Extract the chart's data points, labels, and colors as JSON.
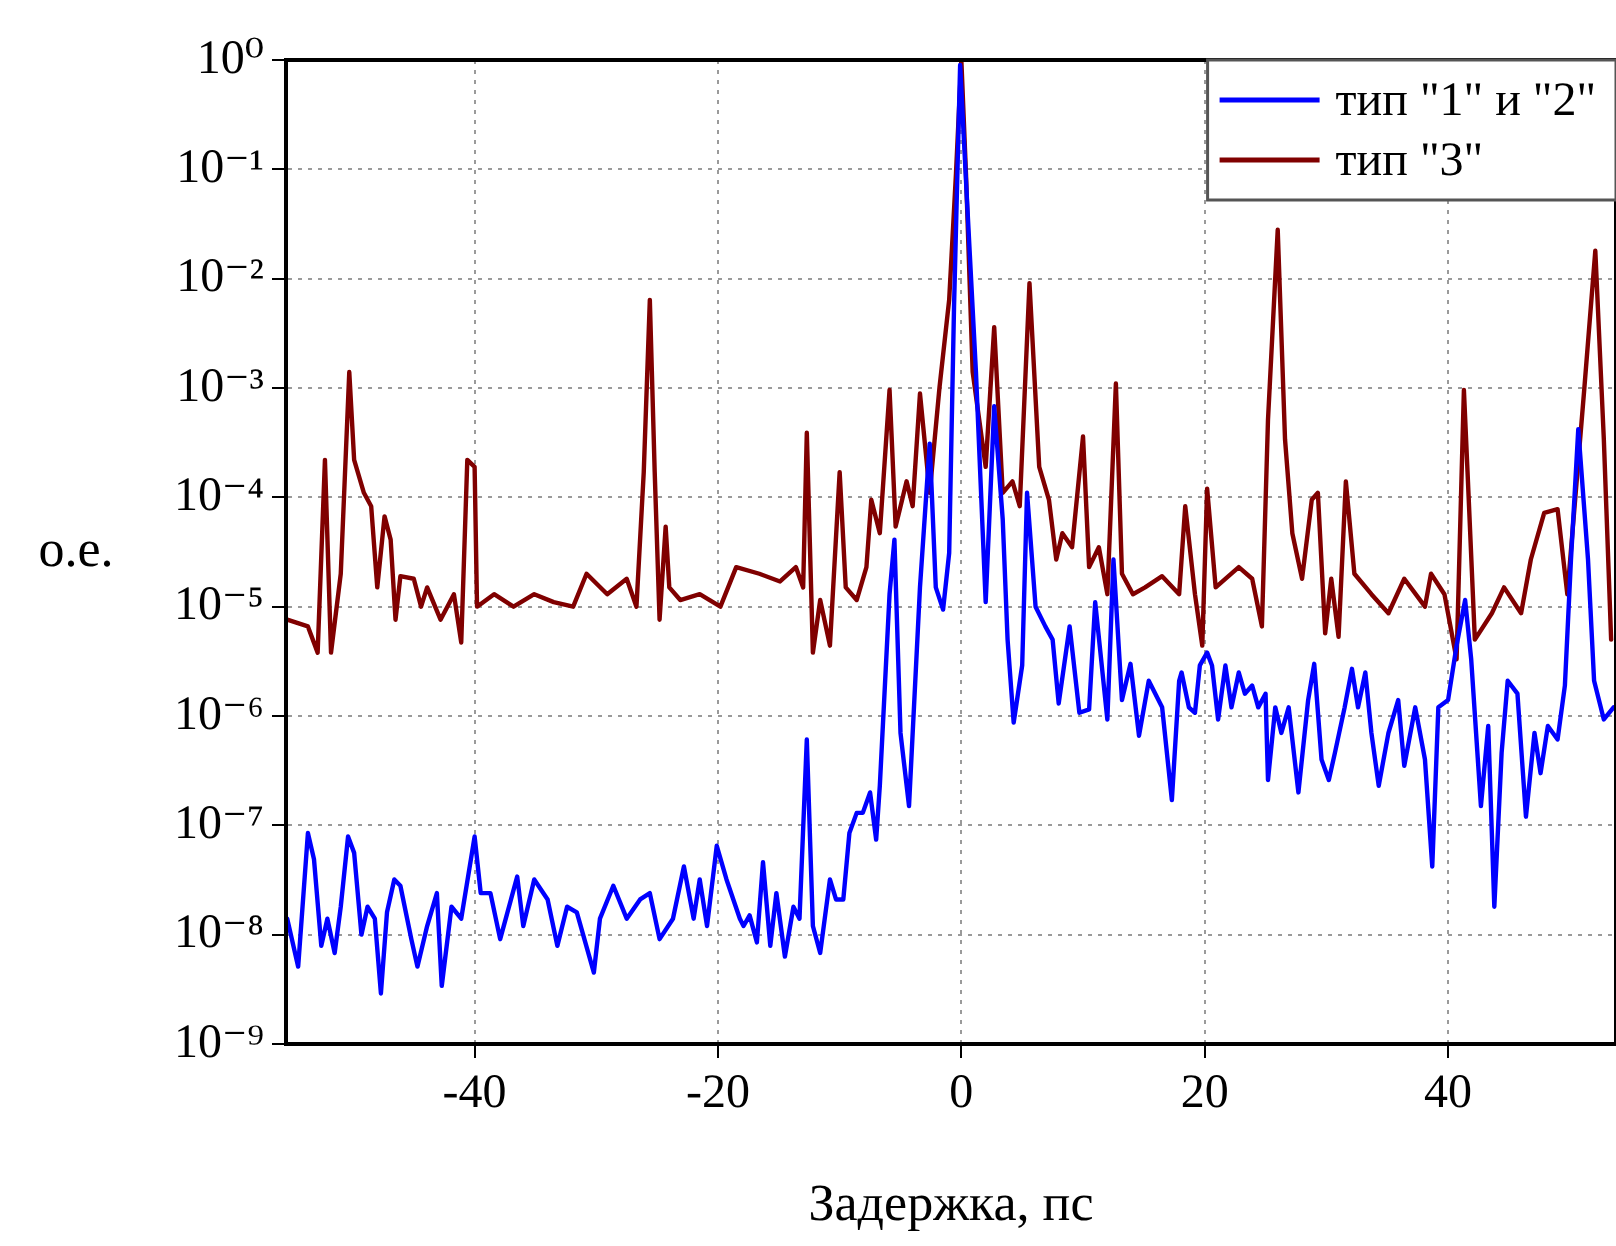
{
  "chart_data": {
    "type": "line",
    "xlabel": "Задержка, пс",
    "ylabel": "о.е.",
    "log": true,
    "grid": true,
    "legend": "top right",
    "marker": "none",
    "line_style": "solid",
    "xlim": [
      -55.5,
      53.8
    ],
    "xticks": [
      -40,
      -20,
      0,
      20,
      40
    ],
    "ylim": [
      1e-09,
      1
    ],
    "yticks": [
      {
        "value": 1e-09,
        "label": "10⁻⁹"
      },
      {
        "value": 1e-08,
        "label": "10⁻⁸"
      },
      {
        "value": 1e-07,
        "label": "10⁻⁷"
      },
      {
        "value": 1e-06,
        "label": "10⁻⁶"
      },
      {
        "value": 1e-05,
        "label": "10⁻⁵"
      },
      {
        "value": 0.0001,
        "label": "10⁻⁴"
      },
      {
        "value": 0.001,
        "label": "10⁻³"
      },
      {
        "value": 0.01,
        "label": "10⁻²"
      },
      {
        "value": 0.1,
        "label": "10⁻¹"
      },
      {
        "value": 1,
        "label": "10⁰"
      }
    ],
    "series": [
      {
        "name": "тип \"1\" и \"2\"",
        "color": "#0000ff",
        "x": [
          -55.4,
          -54.5,
          -53.7,
          -53.2,
          -52.6,
          -52.1,
          -51.5,
          -51.0,
          -50.4,
          -49.9,
          -49.3,
          -48.8,
          -48.2,
          -47.7,
          -47.2,
          -46.6,
          -46.1,
          -45.2,
          -44.7,
          -43.9,
          -43.1,
          -42.7,
          -41.9,
          -41.1,
          -40.0,
          -39.5,
          -38.7,
          -37.9,
          -36.5,
          -36.0,
          -35.1,
          -34.0,
          -33.2,
          -32.4,
          -31.6,
          -30.2,
          -29.7,
          -28.6,
          -27.5,
          -26.4,
          -25.6,
          -24.8,
          -23.7,
          -22.8,
          -22.0,
          -21.5,
          -20.9,
          -20.1,
          -19.3,
          -18.2,
          -17.9,
          -17.4,
          -16.8,
          -16.3,
          -15.7,
          -15.2,
          -14.5,
          -13.8,
          -13.3,
          -12.7,
          -12.2,
          -11.6,
          -10.8,
          -10.3,
          -9.7,
          -9.2,
          -8.6,
          -8.1,
          -7.5,
          -7.0,
          -6.7,
          -5.9,
          -5.5,
          -5.0,
          -4.3,
          -3.4,
          -2.6,
          -2.1,
          -1.5,
          -1.0,
          -0.6,
          -0.1,
          0.49,
          1.2,
          2.0,
          2.7,
          3.4,
          3.8,
          4.3,
          5.0,
          5.4,
          6.1,
          6.9,
          7.5,
          8.0,
          8.9,
          9.7,
          10.5,
          11.0,
          12.0,
          12.5,
          13.2,
          13.9,
          14.6,
          15.4,
          16.5,
          17.3,
          17.9,
          18.1,
          18.7,
          19.2,
          19.6,
          20.2,
          20.6,
          21.1,
          21.7,
          22.2,
          22.8,
          23.3,
          23.9,
          24.4,
          25.0,
          25.2,
          25.8,
          26.3,
          26.9,
          27.7,
          28.5,
          29.0,
          29.6,
          30.2,
          30.7,
          31.5,
          32.1,
          32.6,
          33.2,
          33.7,
          34.3,
          35.1,
          35.9,
          36.4,
          37.3,
          38.1,
          38.7,
          39.2,
          40.0,
          40.7,
          41.4,
          41.9,
          42.7,
          43.3,
          43.8,
          44.4,
          44.9,
          45.7,
          46.4,
          47.1,
          47.6,
          48.2,
          49.0,
          49.6,
          50.1,
          50.7,
          51.5,
          52.0,
          52.8,
          53.6
        ],
        "values": [
          1.4e-08,
          5.1e-09,
          8.5e-08,
          4.9e-08,
          7.9e-09,
          1.4e-08,
          6.8e-09,
          1.8e-08,
          7.9e-08,
          5.6e-08,
          1e-08,
          1.8e-08,
          1.4e-08,
          2.9e-09,
          1.6e-08,
          3.2e-08,
          2.8e-08,
          9.1e-09,
          5.1e-09,
          1.2e-08,
          2.4e-08,
          3.4e-09,
          1.8e-08,
          1.4e-08,
          7.9e-08,
          2.4e-08,
          2.4e-08,
          9.1e-09,
          3.4e-08,
          1.2e-08,
          3.2e-08,
          2.1e-08,
          7.9e-09,
          1.8e-08,
          1.6e-08,
          4.5e-09,
          1.4e-08,
          2.8e-08,
          1.4e-08,
          2.1e-08,
          2.4e-08,
          9.1e-09,
          1.4e-08,
          4.2e-08,
          1.4e-08,
          3.2e-08,
          1.2e-08,
          6.5e-08,
          3.2e-08,
          1.4e-08,
          1.2e-08,
          1.5e-08,
          8.5e-09,
          4.6e-08,
          7.9e-09,
          2.4e-08,
          6.3e-09,
          1.8e-08,
          1.4e-08,
          6.1e-07,
          1.2e-08,
          6.8e-09,
          3.2e-08,
          2.1e-08,
          2.1e-08,
          8.5e-08,
          1.3e-07,
          1.3e-07,
          2e-07,
          7.4e-08,
          2.3e-07,
          1.3e-05,
          4.1e-05,
          7e-07,
          1.5e-07,
          1.5e-05,
          0.00031,
          1.5e-05,
          9.4e-06,
          3.1e-05,
          0.0056,
          0.9,
          0.046,
          0.0014,
          1.1e-05,
          0.00068,
          6.3e-05,
          5e-06,
          8.7e-07,
          2.9e-06,
          0.00011,
          1e-05,
          6.6e-06,
          5e-06,
          1.3e-06,
          6.6e-06,
          1.07e-06,
          1.15e-06,
          1.1e-05,
          9.3e-07,
          2.7e-05,
          1.4e-06,
          3e-06,
          6.6e-07,
          2.1e-06,
          1.2e-06,
          1.7e-07,
          2.1e-06,
          2.5e-06,
          1.2e-06,
          1.07e-06,
          2.9e-06,
          3.8e-06,
          2.9e-06,
          9.3e-07,
          2.9e-06,
          1.2e-06,
          2.5e-06,
          1.6e-06,
          1.9e-06,
          1.2e-06,
          1.6e-06,
          2.6e-07,
          1.2e-06,
          7e-07,
          1.2e-06,
          2e-07,
          1.4e-06,
          3e-06,
          4e-07,
          2.6e-07,
          4.6e-07,
          1.2e-06,
          2.7e-06,
          1.2e-06,
          2.5e-06,
          7e-07,
          2.3e-07,
          7e-07,
          1.4e-06,
          3.5e-07,
          1.2e-06,
          4e-07,
          4.2e-08,
          1.2e-06,
          1.4e-06,
          4.4e-06,
          1.15e-05,
          3.3e-06,
          1.5e-07,
          8.1e-07,
          1.8e-08,
          4.6e-07,
          2.1e-06,
          1.6e-06,
          1.2e-07,
          7e-07,
          3e-07,
          8.1e-07,
          6.1e-07,
          1.9e-06,
          2.7e-05,
          0.00042,
          2.7e-05,
          2.1e-06,
          9.3e-07,
          1.2e-06
        ]
      },
      {
        "name": "тип \"3\"",
        "color": "#800000",
        "x": [
          -55.4,
          -53.7,
          -52.9,
          -52.3,
          -51.8,
          -51.0,
          -50.3,
          -49.9,
          -49.1,
          -48.5,
          -48.0,
          -47.4,
          -46.9,
          -46.5,
          -46.1,
          -45.0,
          -44.4,
          -43.9,
          -42.8,
          -41.7,
          -41.1,
          -40.6,
          -40.0,
          -39.8,
          -38.4,
          -36.8,
          -35.1,
          -33.5,
          -31.9,
          -30.8,
          -29.1,
          -27.5,
          -26.7,
          -26.1,
          -25.6,
          -25.2,
          -24.8,
          -24.3,
          -24.0,
          -23.1,
          -21.5,
          -19.8,
          -18.5,
          -16.6,
          -14.9,
          -13.6,
          -13.0,
          -12.7,
          -12.2,
          -11.6,
          -10.8,
          -10.0,
          -9.5,
          -8.6,
          -7.8,
          -7.4,
          -6.7,
          -5.9,
          -5.4,
          -4.5,
          -4.0,
          -3.4,
          -2.6,
          -1.8,
          -1.0,
          -0.44,
          0,
          0.38,
          0.93,
          2.0,
          2.7,
          3.4,
          4.2,
          4.8,
          5.6,
          6.4,
          7.2,
          7.8,
          8.3,
          9.1,
          10.0,
          10.5,
          11.3,
          12.0,
          12.7,
          13.2,
          14.1,
          15.1,
          16.5,
          17.9,
          18.4,
          19.2,
          19.8,
          20.2,
          20.9,
          22.8,
          23.9,
          24.7,
          25.2,
          26.0,
          26.6,
          27.2,
          28.0,
          28.8,
          29.3,
          29.9,
          30.4,
          31.0,
          31.6,
          32.3,
          33.7,
          35.1,
          36.4,
          38.1,
          38.6,
          39.7,
          40.7,
          41.3,
          41.6,
          42.2,
          43.6,
          44.6,
          46.0,
          46.8,
          47.9,
          49.0,
          49.8,
          51.2,
          52.1,
          52.8,
          53.4
        ],
        "values": [
          7.6e-06,
          6.6e-06,
          3.8e-06,
          0.00022,
          3.8e-06,
          2e-05,
          0.0014,
          0.00022,
          0.00011,
          8.3e-05,
          1.5e-05,
          6.7e-05,
          4.1e-05,
          7.6e-06,
          1.9e-05,
          1.8e-05,
          1e-05,
          1.5e-05,
          7.6e-06,
          1.3e-05,
          4.7e-06,
          0.00022,
          0.00019,
          1e-05,
          1.3e-05,
          1e-05,
          1.3e-05,
          1.1e-05,
          1e-05,
          2e-05,
          1.3e-05,
          1.8e-05,
          1e-05,
          0.00017,
          0.0064,
          0.00017,
          7.6e-06,
          5.4e-05,
          1.5e-05,
          1.15e-05,
          1.3e-05,
          1e-05,
          2.3e-05,
          2e-05,
          1.7e-05,
          2.3e-05,
          1.5e-05,
          0.00039,
          3.8e-06,
          1.15e-05,
          4.4e-06,
          0.00017,
          1.5e-05,
          1.15e-05,
          2.3e-05,
          9.5e-05,
          4.7e-05,
          0.00096,
          5.4e-05,
          0.00014,
          8.3e-05,
          0.00089,
          0.00011,
          0.001,
          0.0064,
          0.092,
          1,
          0.092,
          0.0014,
          0.00019,
          0.0036,
          0.00011,
          0.00014,
          8.3e-05,
          0.0091,
          0.00019,
          9.5e-05,
          2.7e-05,
          4.7e-05,
          3.5e-05,
          0.00036,
          2.3e-05,
          3.5e-05,
          1.3e-05,
          0.0011,
          2e-05,
          1.3e-05,
          1.5e-05,
          1.9e-05,
          1.3e-05,
          8.3e-05,
          1.3e-05,
          4.4e-06,
          0.00012,
          1.5e-05,
          2.3e-05,
          1.8e-05,
          6.6e-06,
          0.00051,
          0.028,
          0.00034,
          4.7e-05,
          1.8e-05,
          9.5e-05,
          0.00011,
          5.7e-06,
          1.8e-05,
          5.3e-06,
          0.00014,
          2e-05,
          1.3e-05,
          8.7e-06,
          1.8e-05,
          1e-05,
          2e-05,
          1.3e-05,
          3.3e-06,
          0.00096,
          0.00017,
          5e-06,
          8.7e-06,
          1.5e-05,
          8.7e-06,
          2.7e-05,
          7.2e-05,
          7.8e-05,
          1.3e-05,
          0.001,
          0.018,
          0.00034,
          5e-06
        ]
      }
    ]
  }
}
